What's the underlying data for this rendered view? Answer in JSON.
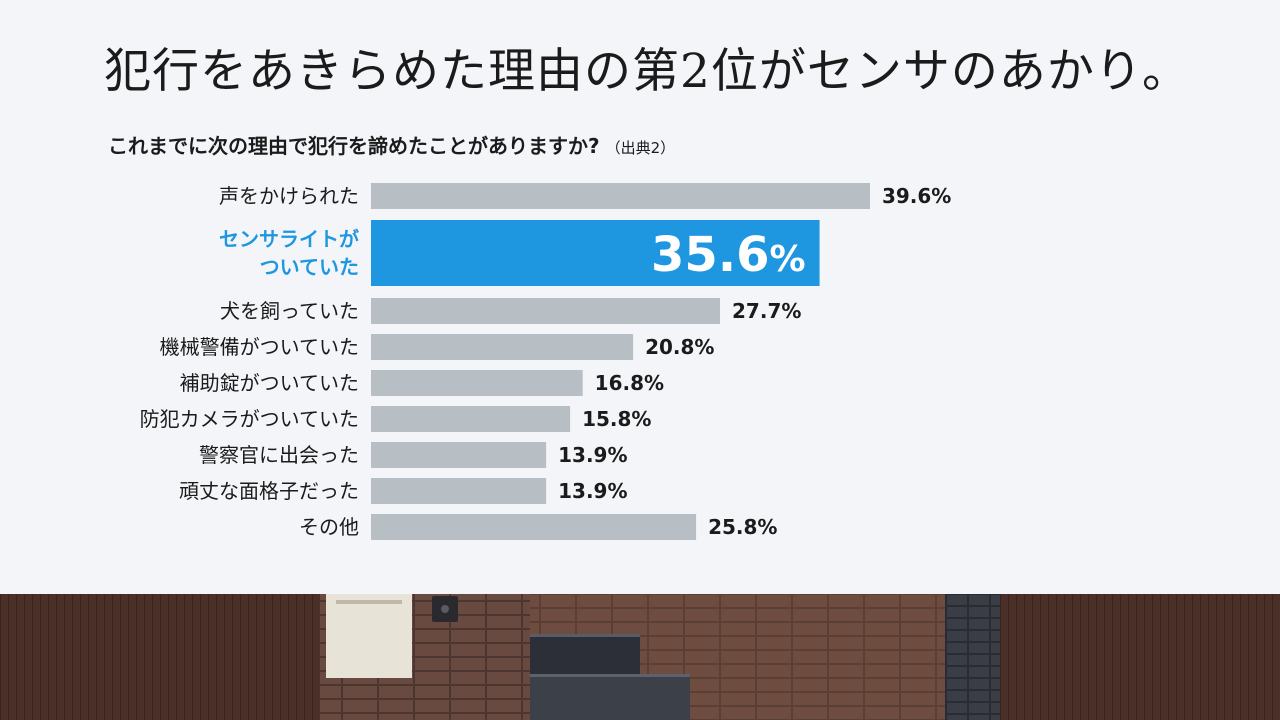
{
  "headline": "犯行をあきらめた理由の第2位がセンサのあかり。",
  "question": "これまでに次の理由で犯行を諦めたことがありますか?",
  "source_note": "（出典2）",
  "colors": {
    "bar": "#b7bfc5",
    "highlight": "#1f96e0",
    "label_text": "#1b1b1b",
    "highlight_label": "#1f96e0",
    "highlight_value": "#ffffff"
  },
  "chart_data": {
    "type": "bar",
    "orientation": "horizontal",
    "unit": "%",
    "categories": [
      "声をかけられた",
      "センサライトがついていた",
      "犬を飼っていた",
      "機械警備がついていた",
      "補助錠がついていた",
      "防犯カメラがついていた",
      "警察官に出会った",
      "頑丈な面格子だった",
      "その他"
    ],
    "category_lines": [
      [
        "声をかけられた"
      ],
      [
        "センサライトが",
        "ついていた"
      ],
      [
        "犬を飼っていた"
      ],
      [
        "機械警備がついていた"
      ],
      [
        "補助錠がついていた"
      ],
      [
        "防犯カメラがついていた"
      ],
      [
        "警察官に出会った"
      ],
      [
        "頑丈な面格子だった"
      ],
      [
        "その他"
      ]
    ],
    "values": [
      39.6,
      35.6,
      27.7,
      20.8,
      16.8,
      15.8,
      13.9,
      13.9,
      25.8
    ],
    "value_labels": [
      "39.6%",
      "35.6",
      "27.7%",
      "20.8%",
      "16.8%",
      "15.8%",
      "13.9%",
      "13.9%",
      "25.8%"
    ],
    "highlight_index": 1,
    "highlight_suffix": "%"
  }
}
